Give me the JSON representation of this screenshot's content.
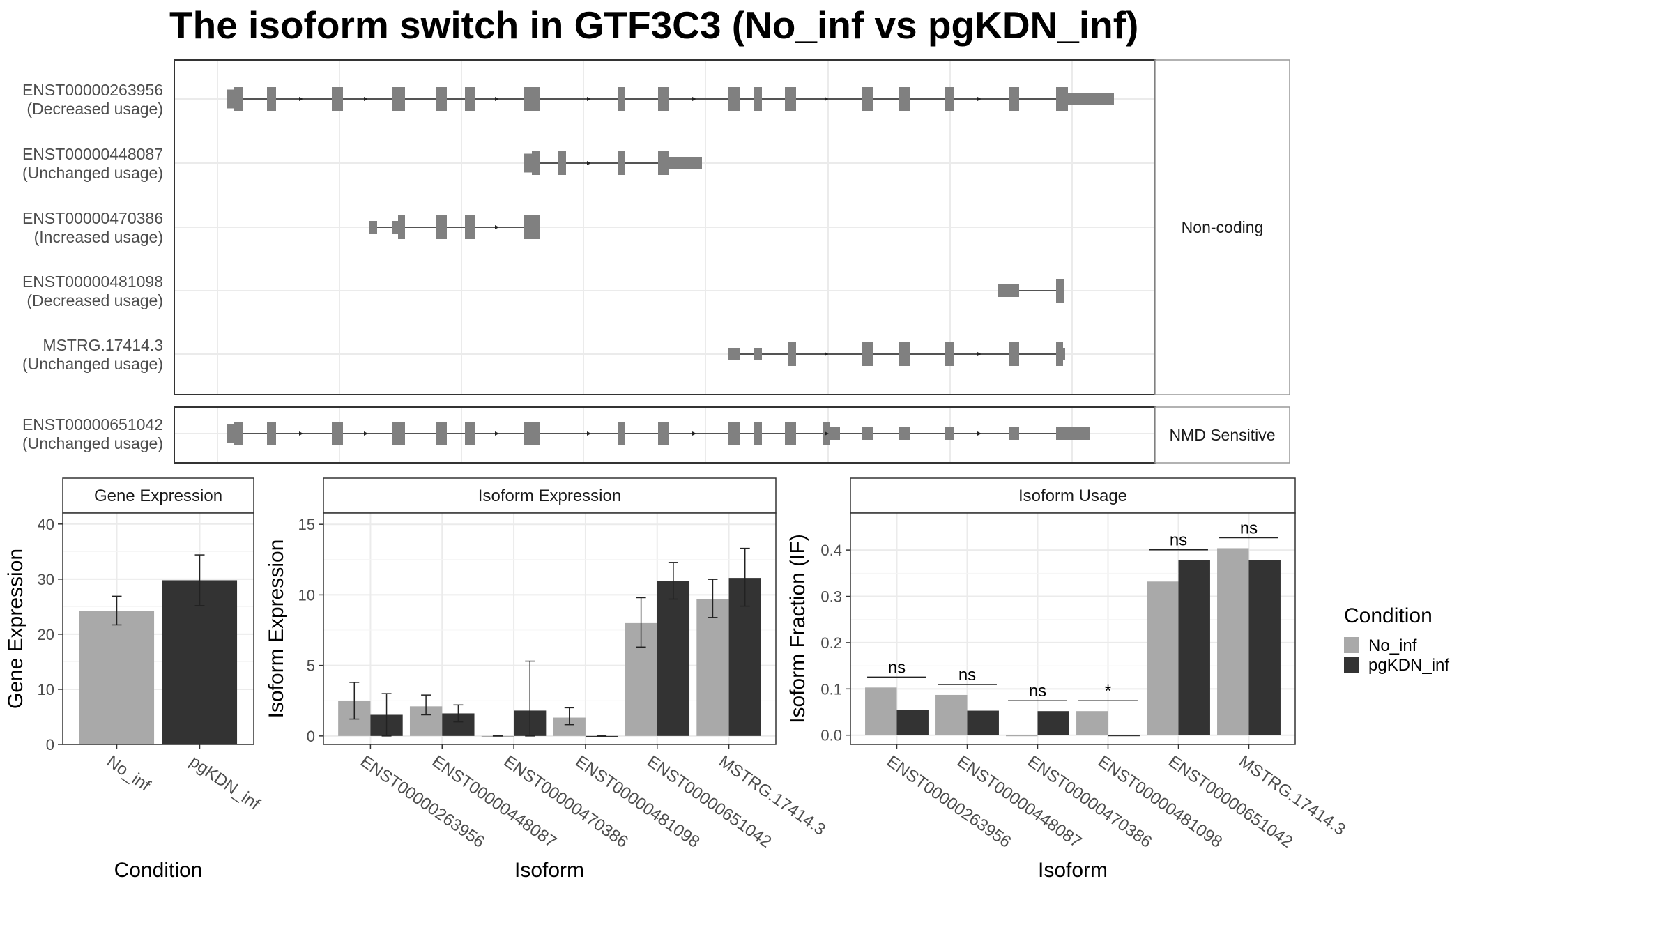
{
  "title": "The isoform switch in GTF3C3 (No_inf vs pgKDN_inf)",
  "colors": {
    "no_inf": "#a9a9a9",
    "pgkdn_inf": "#333333",
    "exon": "#808080",
    "grid": "#ebebeb",
    "border": "#333333",
    "strip_border": "#999999"
  },
  "structure": {
    "facets": [
      "Non-coding",
      "NMD Sensitive"
    ],
    "isoforms": [
      {
        "id": "ENST00000263956",
        "status": "(Decreased usage)",
        "facet": 0
      },
      {
        "id": "ENST00000448087",
        "status": "(Unchanged usage)",
        "facet": 0
      },
      {
        "id": "ENST00000470386",
        "status": "(Increased usage)",
        "facet": 0
      },
      {
        "id": "ENST00000481098",
        "status": "(Decreased usage)",
        "facet": 0
      },
      {
        "id": "MSTRG.17414.3",
        "status": "(Unchanged usage)",
        "facet": 0
      },
      {
        "id": "ENST00000651042",
        "status": "(Unchanged usage)",
        "facet": 1
      }
    ]
  },
  "legend": {
    "title": "Condition",
    "items": [
      "No_inf",
      "pgKDN_inf"
    ]
  },
  "chart_data": [
    {
      "type": "bar",
      "panel": "Gene Expression",
      "categories": [
        "No_inf",
        "pgKDN_inf"
      ],
      "values": [
        24.2,
        29.8
      ],
      "errors": [
        [
          21.7,
          26.9
        ],
        [
          25.2,
          34.4
        ]
      ],
      "xlabel": "Condition",
      "ylabel": "Gene Expression",
      "ylim": [
        0,
        42
      ],
      "yticks": [
        0,
        10,
        20,
        30,
        40
      ]
    },
    {
      "type": "bar",
      "panel": "Isoform Expression",
      "categories": [
        "ENST00000263956",
        "ENST00000448087",
        "ENST00000470386",
        "ENST00000481098",
        "ENST00000651042",
        "MSTRG.17414.3"
      ],
      "series": [
        {
          "name": "No_inf",
          "values": [
            2.5,
            2.1,
            0.0,
            1.3,
            8.0,
            9.7
          ],
          "errors": [
            [
              1.2,
              3.8
            ],
            [
              1.5,
              2.9
            ],
            [
              0.0,
              0.0
            ],
            [
              0.8,
              2.0
            ],
            [
              6.3,
              9.8
            ],
            [
              8.4,
              11.1
            ]
          ]
        },
        {
          "name": "pgKDN_inf",
          "values": [
            1.5,
            1.6,
            1.8,
            0.0,
            11.0,
            11.2
          ],
          "errors": [
            [
              0.0,
              3.0
            ],
            [
              1.0,
              2.2
            ],
            [
              0.0,
              5.3
            ],
            [
              0.0,
              0.0
            ],
            [
              9.7,
              12.3
            ],
            [
              9.2,
              13.3
            ]
          ]
        }
      ],
      "xlabel": "Isoform",
      "ylabel": "Isoform Expression",
      "ylim": [
        -0.6,
        15.8
      ],
      "yticks": [
        0,
        5,
        10,
        15
      ]
    },
    {
      "type": "bar",
      "panel": "Isoform Usage",
      "categories": [
        "ENST00000263956",
        "ENST00000448087",
        "ENST00000470386",
        "ENST00000481098",
        "ENST00000651042",
        "MSTRG.17414.3"
      ],
      "series": [
        {
          "name": "No_inf",
          "values": [
            0.103,
            0.087,
            0.0,
            0.052,
            0.332,
            0.404
          ]
        },
        {
          "name": "pgKDN_inf",
          "values": [
            0.055,
            0.053,
            0.052,
            0.0,
            0.378,
            0.378
          ]
        }
      ],
      "significance": [
        "ns",
        "ns",
        "ns",
        "*",
        "ns",
        "ns"
      ],
      "xlabel": "Isoform",
      "ylabel": "Isoform Fraction (IF)",
      "ylim": [
        -0.02,
        0.48
      ],
      "yticks": [
        0.0,
        0.1,
        0.2,
        0.3,
        0.4
      ],
      "ytick_labels": [
        "0.0",
        "0.1",
        "0.2",
        "0.3",
        "0.4"
      ]
    }
  ]
}
